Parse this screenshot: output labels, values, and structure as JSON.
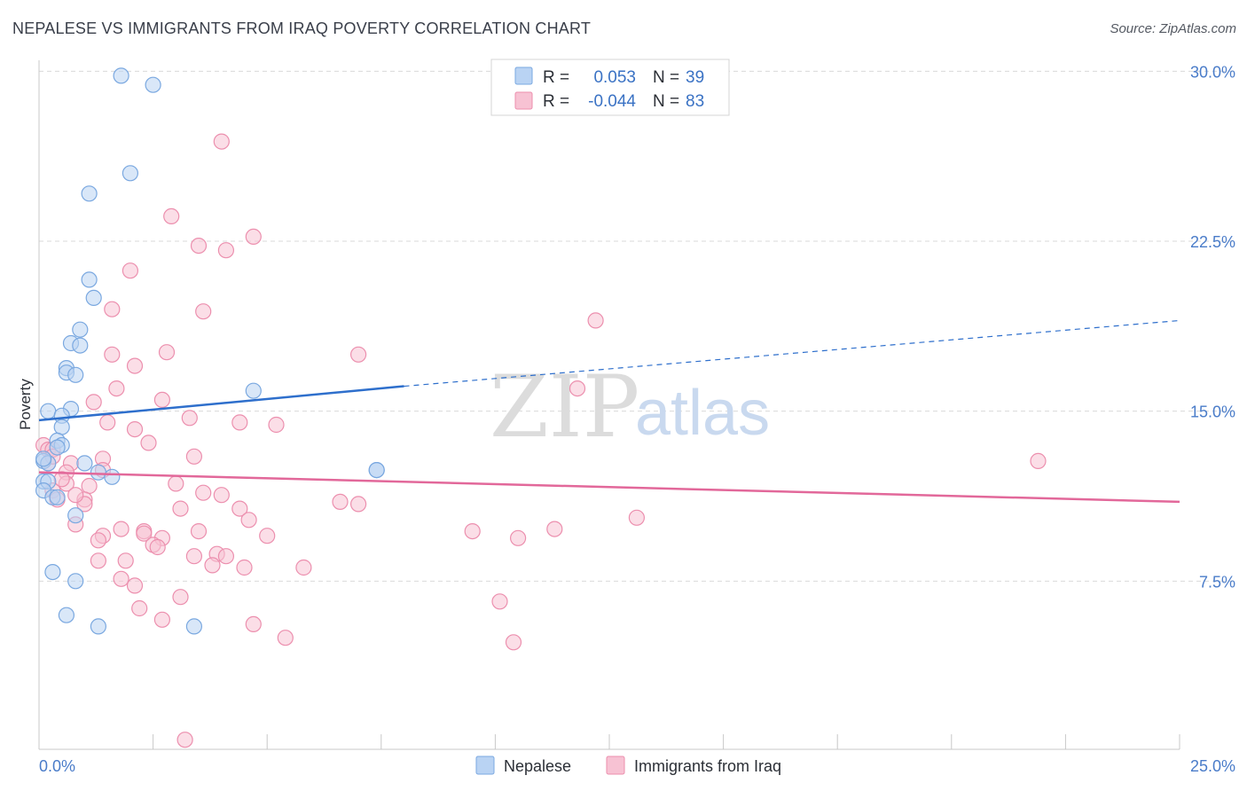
{
  "title": "NEPALESE VS IMMIGRANTS FROM IRAQ POVERTY CORRELATION CHART",
  "source": "Source: ZipAtlas.com",
  "watermark": {
    "zip": "ZIP",
    "atlas": "atlas"
  },
  "colors": {
    "nepalese_fill": "#b9d3f3",
    "nepalese_stroke": "#7aa8e0",
    "nepalese_line": "#2e6fcc",
    "iraq_fill": "#f7c2d3",
    "iraq_stroke": "#ec8fae",
    "iraq_line": "#e2689a",
    "grid": "#d9d9d9",
    "tick_label": "#4a7cc9"
  },
  "legend": {
    "rows": [
      {
        "r_label": "R =",
        "r_value": "0.053",
        "n_label": "N =",
        "n_value": "39"
      },
      {
        "r_label": "R =",
        "r_value": "-0.044",
        "n_label": "N =",
        "n_value": "83"
      }
    ]
  },
  "bottom_legend": [
    "Nepalese",
    "Immigrants from Iraq"
  ],
  "chart_data": {
    "type": "scatter",
    "title": "NEPALESE VS IMMIGRANTS FROM IRAQ POVERTY CORRELATION CHART",
    "xlabel": "",
    "ylabel": "Poverty",
    "xlim": [
      0,
      25
    ],
    "ylim": [
      0,
      31
    ],
    "x_tick_labels": [
      "0.0%",
      "25.0%"
    ],
    "y_ticks": [
      7.5,
      15.0,
      22.5,
      30.0
    ],
    "y_tick_labels": [
      "7.5%",
      "15.0%",
      "22.5%",
      "30.0%"
    ],
    "grid": true,
    "legend_position": "top-center",
    "series": [
      {
        "name": "Nepalese",
        "r": 0.053,
        "n": 39,
        "trend": {
          "x0": 0,
          "y0": 14.6,
          "x1": 8.0,
          "y1": 16.1,
          "dashed_to_x": 25,
          "dashed_to_y": 19.0
        },
        "points": [
          [
            1.8,
            29.8
          ],
          [
            2.5,
            29.4
          ],
          [
            2.0,
            25.5
          ],
          [
            1.1,
            24.6
          ],
          [
            1.1,
            20.8
          ],
          [
            1.2,
            20.0
          ],
          [
            0.9,
            18.6
          ],
          [
            0.7,
            18.0
          ],
          [
            0.9,
            17.9
          ],
          [
            0.6,
            16.9
          ],
          [
            0.6,
            16.7
          ],
          [
            0.8,
            16.6
          ],
          [
            4.7,
            15.9
          ],
          [
            0.2,
            15.0
          ],
          [
            0.7,
            15.1
          ],
          [
            0.5,
            14.8
          ],
          [
            0.5,
            14.3
          ],
          [
            0.4,
            13.7
          ],
          [
            0.5,
            13.5
          ],
          [
            0.4,
            13.4
          ],
          [
            0.1,
            12.8
          ],
          [
            0.2,
            12.7
          ],
          [
            1.0,
            12.7
          ],
          [
            1.3,
            12.3
          ],
          [
            1.6,
            12.1
          ],
          [
            7.4,
            12.4
          ],
          [
            7.4,
            12.4
          ],
          [
            0.1,
            11.9
          ],
          [
            0.2,
            11.9
          ],
          [
            0.1,
            11.5
          ],
          [
            0.3,
            11.2
          ],
          [
            0.4,
            11.2
          ],
          [
            0.8,
            10.4
          ],
          [
            0.3,
            7.9
          ],
          [
            0.8,
            7.5
          ],
          [
            0.6,
            6.0
          ],
          [
            1.3,
            5.5
          ],
          [
            3.4,
            5.5
          ],
          [
            0.1,
            12.9
          ]
        ]
      },
      {
        "name": "Immigrants from Iraq",
        "r": -0.044,
        "n": 83,
        "trend": {
          "x0": 0,
          "y0": 12.3,
          "x1": 25,
          "y1": 11.0
        },
        "points": [
          [
            4.0,
            26.9
          ],
          [
            2.9,
            23.6
          ],
          [
            4.7,
            22.7
          ],
          [
            3.5,
            22.3
          ],
          [
            4.1,
            22.1
          ],
          [
            2.0,
            21.2
          ],
          [
            1.6,
            19.5
          ],
          [
            3.6,
            19.4
          ],
          [
            12.2,
            19.0
          ],
          [
            1.6,
            17.5
          ],
          [
            2.8,
            17.6
          ],
          [
            7.0,
            17.5
          ],
          [
            2.1,
            17.0
          ],
          [
            1.7,
            16.0
          ],
          [
            11.8,
            16.0
          ],
          [
            2.7,
            15.5
          ],
          [
            1.2,
            15.4
          ],
          [
            3.3,
            14.7
          ],
          [
            1.5,
            14.5
          ],
          [
            4.4,
            14.5
          ],
          [
            5.2,
            14.4
          ],
          [
            2.1,
            14.2
          ],
          [
            2.4,
            13.6
          ],
          [
            0.1,
            13.5
          ],
          [
            0.2,
            13.3
          ],
          [
            0.3,
            13.3
          ],
          [
            3.4,
            13.0
          ],
          [
            1.4,
            12.9
          ],
          [
            0.2,
            12.7
          ],
          [
            0.7,
            12.7
          ],
          [
            0.6,
            12.3
          ],
          [
            1.4,
            12.4
          ],
          [
            21.9,
            12.8
          ],
          [
            3.0,
            11.8
          ],
          [
            1.1,
            11.7
          ],
          [
            0.6,
            11.8
          ],
          [
            0.3,
            11.5
          ],
          [
            3.6,
            11.4
          ],
          [
            4.0,
            11.3
          ],
          [
            0.4,
            11.1
          ],
          [
            1.0,
            11.1
          ],
          [
            6.6,
            11.0
          ],
          [
            7.0,
            10.9
          ],
          [
            1.0,
            10.9
          ],
          [
            3.1,
            10.7
          ],
          [
            4.4,
            10.7
          ],
          [
            4.6,
            10.2
          ],
          [
            13.1,
            10.3
          ],
          [
            0.8,
            10.0
          ],
          [
            1.8,
            9.8
          ],
          [
            2.3,
            9.7
          ],
          [
            2.3,
            9.6
          ],
          [
            3.5,
            9.7
          ],
          [
            9.5,
            9.7
          ],
          [
            11.3,
            9.8
          ],
          [
            1.4,
            9.5
          ],
          [
            2.7,
            9.4
          ],
          [
            5.0,
            9.5
          ],
          [
            1.3,
            9.3
          ],
          [
            10.5,
            9.4
          ],
          [
            2.5,
            9.1
          ],
          [
            2.6,
            9.0
          ],
          [
            3.4,
            8.6
          ],
          [
            3.9,
            8.7
          ],
          [
            4.1,
            8.6
          ],
          [
            1.3,
            8.4
          ],
          [
            1.9,
            8.4
          ],
          [
            3.8,
            8.2
          ],
          [
            4.5,
            8.1
          ],
          [
            5.8,
            8.1
          ],
          [
            1.8,
            7.6
          ],
          [
            2.1,
            7.3
          ],
          [
            3.1,
            6.8
          ],
          [
            10.1,
            6.6
          ],
          [
            2.2,
            6.3
          ],
          [
            2.7,
            5.8
          ],
          [
            4.7,
            5.6
          ],
          [
            5.4,
            5.0
          ],
          [
            10.4,
            4.8
          ],
          [
            3.2,
            0.5
          ],
          [
            0.3,
            13.0
          ],
          [
            0.5,
            12.0
          ],
          [
            0.8,
            11.3
          ]
        ]
      }
    ]
  }
}
